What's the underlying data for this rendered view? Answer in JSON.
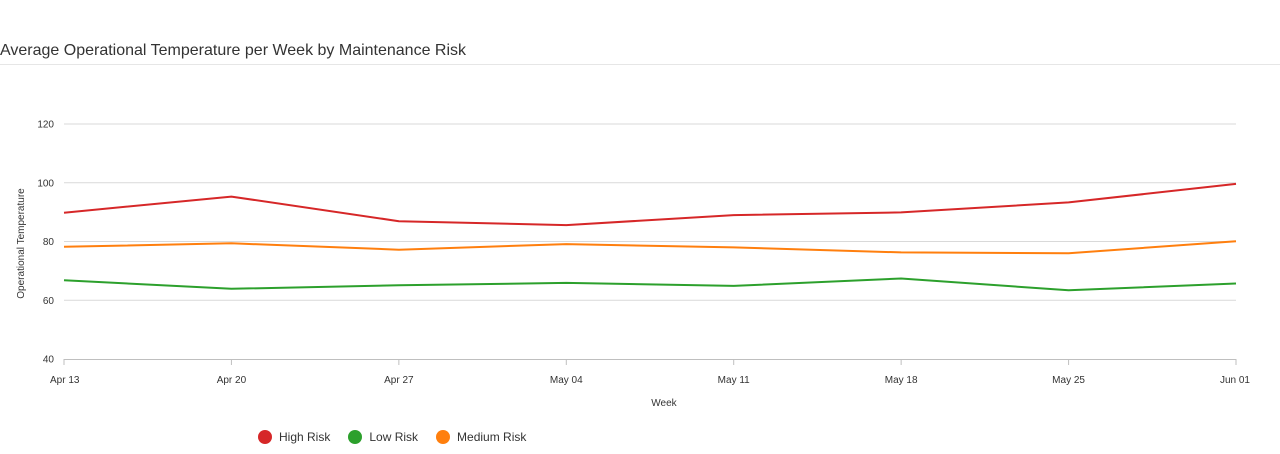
{
  "page": {
    "title": "Average Operational Temperature per Week by Maintenance Risk"
  },
  "chart_data": {
    "type": "line",
    "title": "Average Operational Temperature per Week by Maintenance Risk",
    "xlabel": "Week",
    "ylabel": "Operational Temperature",
    "categories": [
      "Apr 13",
      "Apr 20",
      "Apr 27",
      "May 04",
      "May 11",
      "May 18",
      "May 25",
      "Jun 01"
    ],
    "ylim": [
      40,
      125
    ],
    "yticks": [
      40,
      60,
      80,
      100,
      120
    ],
    "grid": true,
    "legend_position": "bottom",
    "series": [
      {
        "name": "High Risk",
        "color": "#d62728",
        "values": [
          89.8,
          95.3,
          86.9,
          85.6,
          89.0,
          89.9,
          93.3,
          99.6
        ]
      },
      {
        "name": "Low Risk",
        "color": "#2ca02c",
        "values": [
          66.8,
          63.9,
          65.1,
          65.9,
          64.9,
          67.4,
          63.4,
          65.7
        ]
      },
      {
        "name": "Medium Risk",
        "color": "#ff7f0e",
        "values": [
          78.2,
          79.4,
          77.2,
          79.1,
          78.0,
          76.3,
          76.0,
          80.1
        ]
      }
    ]
  }
}
